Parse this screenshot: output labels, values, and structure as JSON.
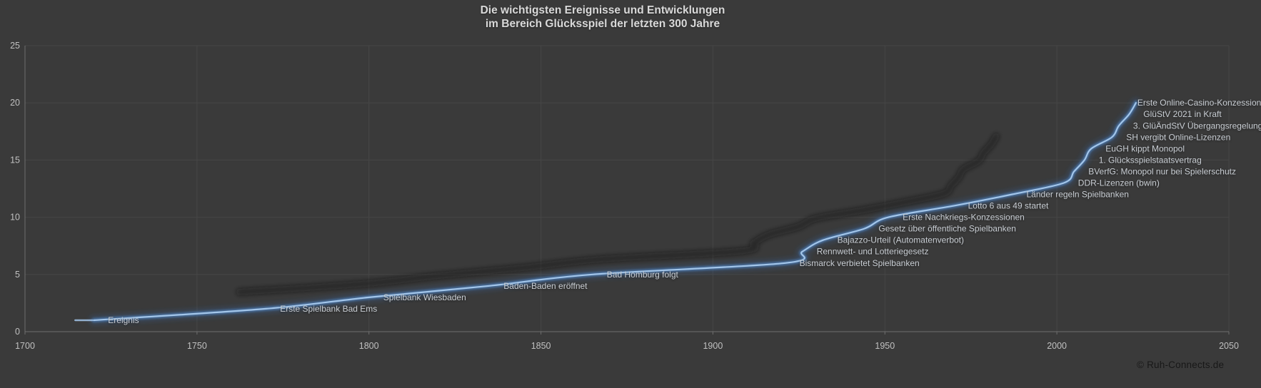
{
  "title": {
    "line1": "Die wichtigsten Ereignisse und Entwicklungen",
    "line2": "im Bereich Glücksspiel der letzten 300 Jahre"
  },
  "copyright": "© Ruh-Connects.de",
  "colors": {
    "background": "#3a3a3a",
    "grid": "#464646",
    "axis": "#6f6f6f",
    "tick_text": "#c0c0c0",
    "event_label_text": "#c9ced4",
    "title_text": "#d9d9d9",
    "line_core": "#a3c6ea",
    "line_mid": "#4f83bd",
    "line_glow": "#35639e",
    "shadow": "#0d0d0d",
    "copyright_text": "#181818"
  },
  "chart_data": {
    "type": "line",
    "title": "Die wichtigsten Ereignisse und Entwicklungen im Bereich Glücksspiel der letzten 300 Jahre",
    "xlabel": "",
    "ylabel": "",
    "x_axis": {
      "min": 1700,
      "max": 2050,
      "ticks": [
        1700,
        1750,
        1800,
        1850,
        1900,
        1950,
        2000,
        2050
      ]
    },
    "y_axis": {
      "min": 0,
      "max": 25,
      "ticks": [
        0,
        5,
        10,
        15,
        20,
        25
      ]
    },
    "grid": true,
    "legend": false,
    "series": [
      {
        "name": "Ereignis",
        "smooth": true,
        "points": [
          {
            "label": "Ereignis",
            "year": 1720,
            "value": 1
          },
          {
            "label": "Erste Spielbank Bad Ems",
            "year": 1770,
            "value": 2
          },
          {
            "label": "Spielbank Wiesbaden",
            "year": 1800,
            "value": 3
          },
          {
            "label": "Baden-Baden eröffnet",
            "year": 1835,
            "value": 4
          },
          {
            "label": "Bad Homburg folgt",
            "year": 1865,
            "value": 5
          },
          {
            "label": "Bismarck verbietet Spielbanken",
            "year": 1921,
            "value": 6
          },
          {
            "label": "Rennwett- und Lotteriegesetz",
            "year": 1926,
            "value": 7
          },
          {
            "label": "Bajazzo-Urteil (Automatenverbot)",
            "year": 1932,
            "value": 8
          },
          {
            "label": "Gesetz über öffentliche Spielbanken",
            "year": 1944,
            "value": 9
          },
          {
            "label": "Erste Nachkriegs-Konzessionen",
            "year": 1951,
            "value": 10
          },
          {
            "label": "Lotto 6 aus 49 startet",
            "year": 1970,
            "value": 11
          },
          {
            "label": "Länder regeln Spielbanken",
            "year": 1987,
            "value": 12
          },
          {
            "label": "DDR-Lizenzen (bwin)",
            "year": 2002,
            "value": 13
          },
          {
            "label": "BVerfG: Monopol nur bei Spielerschutz",
            "year": 2005,
            "value": 14
          },
          {
            "label": "1. Glücksspielstaatsvertrag",
            "year": 2008,
            "value": 15
          },
          {
            "label": "EuGH kippt Monopol",
            "year": 2010,
            "value": 16
          },
          {
            "label": "SH vergibt Online-Lizenzen",
            "year": 2016,
            "value": 17
          },
          {
            "label": "3. GlüÄndStV Übergangsregelung",
            "year": 2018,
            "value": 18
          },
          {
            "label": "GlüStV 2021 in Kraft",
            "year": 2021,
            "value": 19
          },
          {
            "label": "Erste Online-Casino-Konzessionen",
            "year": 2023,
            "value": 20,
            "label_dx": -18
          }
        ]
      }
    ]
  }
}
